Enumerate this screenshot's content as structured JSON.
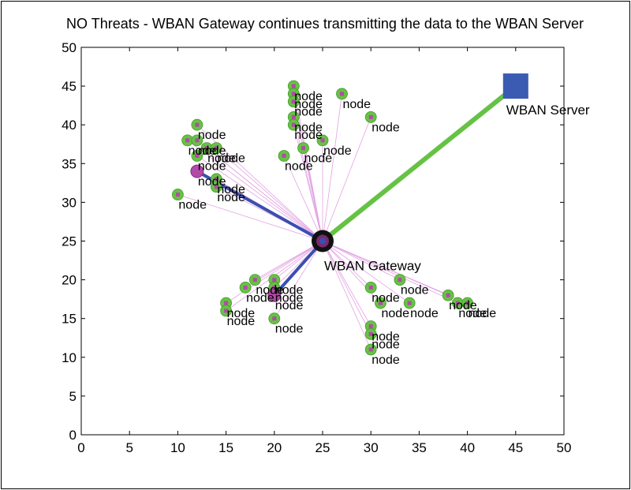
{
  "chart_data": {
    "type": "scatter",
    "title": "NO Threats - WBAN Gateway continues transmitting the data to the WBAN Server",
    "xlabel": "",
    "ylabel": "",
    "xlim": [
      0,
      50
    ],
    "ylim": [
      0,
      50
    ],
    "xticks": [
      "0",
      "5",
      "10",
      "15",
      "20",
      "25",
      "30",
      "35",
      "40",
      "45",
      "50"
    ],
    "yticks": [
      "0",
      "5",
      "10",
      "15",
      "20",
      "25",
      "30",
      "35",
      "40",
      "45",
      "50"
    ],
    "grid": false,
    "colors": {
      "node_fill": "#66c244",
      "node_center": "#b24aa8",
      "server": "#3b5ab2",
      "gateway_link": "#66c244",
      "cluster_link": "#3a4fb0",
      "node_link": "#e2a2e2",
      "gateway_ring": "#111111"
    },
    "node_label": "node",
    "nodes": [
      {
        "x": 22,
        "y": 45
      },
      {
        "x": 22,
        "y": 44
      },
      {
        "x": 22,
        "y": 43
      },
      {
        "x": 27,
        "y": 44
      },
      {
        "x": 22,
        "y": 41
      },
      {
        "x": 22,
        "y": 40
      },
      {
        "x": 30,
        "y": 41
      },
      {
        "x": 25,
        "y": 38
      },
      {
        "x": 23,
        "y": 37
      },
      {
        "x": 21,
        "y": 36
      },
      {
        "x": 12,
        "y": 40
      },
      {
        "x": 11,
        "y": 38
      },
      {
        "x": 12,
        "y": 38
      },
      {
        "x": 13,
        "y": 37
      },
      {
        "x": 14,
        "y": 37
      },
      {
        "x": 12,
        "y": 36
      },
      {
        "x": 14,
        "y": 33
      },
      {
        "x": 14,
        "y": 32
      },
      {
        "x": 10,
        "y": 31
      },
      {
        "x": 18,
        "y": 20
      },
      {
        "x": 20,
        "y": 20
      },
      {
        "x": 17,
        "y": 19
      },
      {
        "x": 20,
        "y": 19
      },
      {
        "x": 15,
        "y": 17
      },
      {
        "x": 15,
        "y": 16
      },
      {
        "x": 20,
        "y": 15
      },
      {
        "x": 30,
        "y": 19
      },
      {
        "x": 33,
        "y": 20
      },
      {
        "x": 31,
        "y": 17
      },
      {
        "x": 34,
        "y": 17
      },
      {
        "x": 38,
        "y": 18
      },
      {
        "x": 39,
        "y": 17
      },
      {
        "x": 40,
        "y": 17
      },
      {
        "x": 30,
        "y": 14
      },
      {
        "x": 30,
        "y": 13
      },
      {
        "x": 30,
        "y": 11
      }
    ],
    "cluster_heads": [
      {
        "x": 12,
        "y": 34,
        "label": "node"
      },
      {
        "x": 20,
        "y": 18,
        "label": "node"
      }
    ],
    "gateway": {
      "x": 25,
      "y": 25,
      "label": "WBAN Gateway"
    },
    "server": {
      "x": 45,
      "y": 45,
      "label": "WBAN Server"
    }
  }
}
